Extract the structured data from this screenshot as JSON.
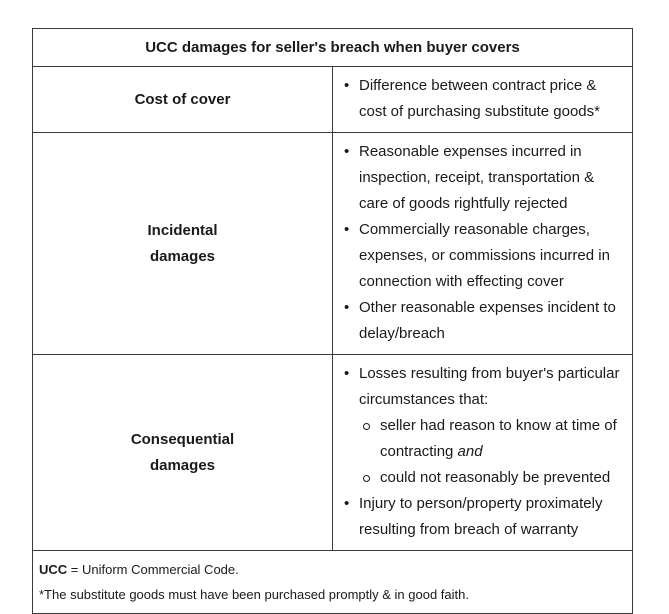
{
  "title": "UCC damages for seller's breach when buyer covers",
  "rows": [
    {
      "label": "Cost of cover",
      "bullets": [
        "Difference between contract price & cost of purchasing substitute goods*"
      ]
    },
    {
      "label_line1": "Incidental",
      "label_line2": "damages",
      "bullets": [
        "Reasonable expenses incurred in inspection, receipt, transportation & care of goods rightfully rejected",
        "Commercially reasonable charges, expenses, or commissions incurred in connection with effecting cover",
        "Other reasonable expenses incident to delay/breach"
      ]
    },
    {
      "label_line1": "Consequential",
      "label_line2": "damages",
      "bullets": [
        "Losses resulting from buyer's particular circumstances that:",
        "Injury to person/property proximately resulting from breach of warranty"
      ],
      "sub_bullets": [
        "seller had reason to know at time of contracting",
        "and",
        "could not reasonably be prevented"
      ]
    }
  ],
  "footnote": {
    "abbr": "UCC",
    "abbr_def": " = Uniform Commercial Code.",
    "note": "*The substitute goods must have been purchased promptly & in good faith."
  }
}
